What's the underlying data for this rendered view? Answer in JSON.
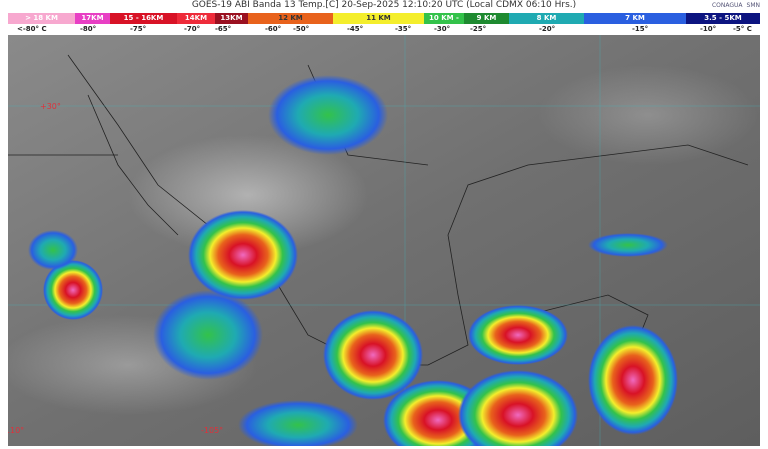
{
  "title": "GOES-19 ABI Banda 13 Temp.[C] 20-Sep-2025 12:10:20 UTC (Local CDMX  06:10 Hrs.)",
  "logos": [
    "CONAGUA",
    "SMN"
  ],
  "legend": [
    {
      "label": "> 18 KM",
      "color": "#f7a8cf"
    },
    {
      "label": "17KM",
      "color": "#e83fc4"
    },
    {
      "label": "15 - 16KM",
      "color": "#d81226"
    },
    {
      "label": "14KM",
      "color": "#ee2b3a"
    },
    {
      "label": "13KM",
      "color": "#9a1020"
    },
    {
      "label": "12 KM",
      "color": "#e8621c"
    },
    {
      "label": "11 KM",
      "color": "#f4ee2c"
    },
    {
      "label": "10 KM - ",
      "color": "#33c24a"
    },
    {
      "label": "9 KM",
      "color": "#1e8a30"
    },
    {
      "label": "8 KM",
      "color": "#1faab2"
    },
    {
      "label": "7 KM",
      "color": "#2a5fe0"
    },
    {
      "label": "3.5 - 5KM",
      "color": "#0c1480"
    }
  ],
  "temperatures": [
    "<-80° C",
    "-80°",
    "-75°",
    "-70°",
    "-65°",
    "-60°",
    "-50°",
    "-45°",
    "-35°",
    "-30°",
    "-25°",
    "-20°",
    "-15°",
    "-10°",
    "-5° C"
  ],
  "grid_labels": {
    "lat_30": "+30°",
    "lon_110": "-110°",
    "lon_105": "-105°"
  }
}
